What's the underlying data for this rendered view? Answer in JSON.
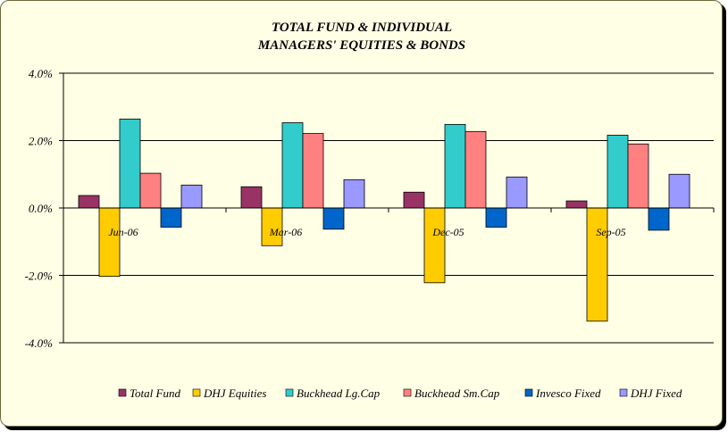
{
  "chart_data": {
    "type": "bar",
    "title_lines": [
      "TOTAL FUND  & INDIVIDUAL",
      "MANAGERS' EQUITIES & BONDS"
    ],
    "categories": [
      "Jun-06",
      "Mar-06",
      "Dec-05",
      "Sep-05"
    ],
    "y_ticks": [
      "4.0%",
      "2.0%",
      "0.0%",
      "-2.0%",
      "-4.0%"
    ],
    "ylim": [
      -4.0,
      4.0
    ],
    "y_unit": "%",
    "grid": true,
    "legend_position": "bottom",
    "series": [
      {
        "name": "Total Fund",
        "color": "#993366",
        "values": [
          0.37,
          0.63,
          0.47,
          0.21
        ]
      },
      {
        "name": "DHJ Equities",
        "color": "#ffcc00",
        "values": [
          -2.03,
          -1.12,
          -2.22,
          -3.36
        ]
      },
      {
        "name": "Buckhead Lg.Cap",
        "color": "#33cccc",
        "values": [
          2.64,
          2.53,
          2.48,
          2.16
        ]
      },
      {
        "name": "Buckhead Sm.Cap",
        "color": "#ff8080",
        "values": [
          1.03,
          2.21,
          2.27,
          1.9
        ]
      },
      {
        "name": "Invesco Fixed",
        "color": "#0066cc",
        "values": [
          -0.57,
          -0.63,
          -0.57,
          -0.66
        ]
      },
      {
        "name": "DHJ Fixed",
        "color": "#9999ff",
        "values": [
          0.68,
          0.84,
          0.92,
          1.0
        ]
      }
    ]
  }
}
